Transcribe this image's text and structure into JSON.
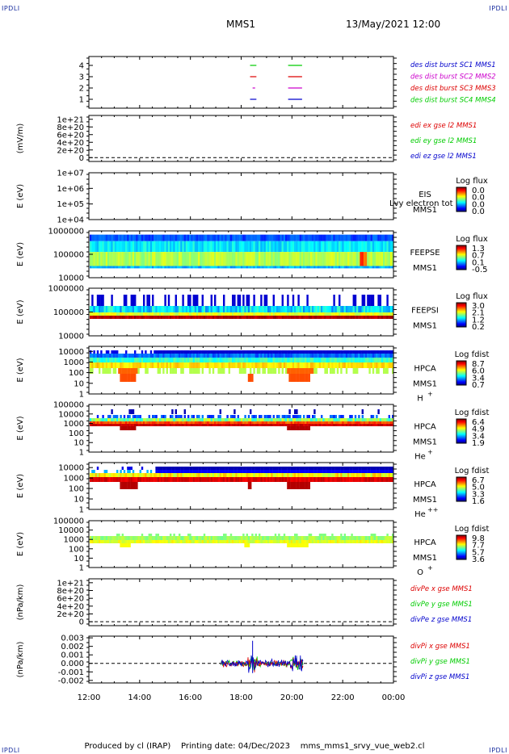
{
  "corners": {
    "tl": "IPDLI",
    "tr": "IPDLI",
    "bl": "IPDLI",
    "br": "IPDLI"
  },
  "header": {
    "mission": "MMS1",
    "datetime": "13/May/2021 12:00"
  },
  "footer": {
    "produced_by": "Produced by cl (IRAP)",
    "printing_date": "Printing date: 04/Dec/2023",
    "file": "mms_mms1_srvy_vue_web2.cl"
  },
  "colors": {
    "mms1": "#0000cc",
    "mms2": "#cc00cc",
    "mms3": "#dd0000",
    "mms4": "#00cc00",
    "x": "#dd0000",
    "y": "#00cc00",
    "z": "#0000cc"
  },
  "x_axis": {
    "ticks": [
      "12:00",
      "14:00",
      "16:00",
      "18:00",
      "20:00",
      "22:00",
      "00:00"
    ],
    "range_hours": [
      12,
      24
    ]
  },
  "chart_data": [
    {
      "type": "line",
      "panel": "des-dist-burst",
      "ylabel": "",
      "yticks": [
        "1",
        "2",
        "3",
        "4"
      ],
      "ylim": [
        0.5,
        4.5
      ],
      "legend": [
        "des dist burst SC1 MMS1",
        "des dist burst SC2 MMS2",
        "des dist burst SC3 MMS3",
        "des dist burst SC4 MMS4"
      ],
      "series": [
        {
          "name": "des dist burst SC1 MMS1",
          "color": "#0000cc",
          "level": 1,
          "intervals": [
            [
              18.35,
              18.6
            ],
            [
              19.85,
              20.4
            ]
          ]
        },
        {
          "name": "des dist burst SC2 MMS2",
          "color": "#cc00cc",
          "level": 2,
          "intervals": [
            [
              18.45,
              18.55
            ],
            [
              19.85,
              20.4
            ]
          ]
        },
        {
          "name": "des dist burst SC3 MMS3",
          "color": "#dd0000",
          "level": 3,
          "intervals": [
            [
              18.35,
              18.6
            ],
            [
              19.85,
              20.4
            ]
          ]
        },
        {
          "name": "des dist burst SC4 MMS4",
          "color": "#00cc00",
          "level": 4,
          "intervals": [
            [
              18.35,
              18.6
            ],
            [
              19.85,
              20.4
            ]
          ]
        }
      ]
    },
    {
      "type": "line",
      "panel": "edi-e-gse",
      "ylabel": "(mV/m)",
      "yticks": [
        "0",
        "2e+20",
        "4e+20",
        "6e+20",
        "8e+20",
        "1e+21"
      ],
      "ylim": [
        -1e+20,
        1.1e+21
      ],
      "dashed_zero": true,
      "legend": [
        "edi ex gse l2 MMS1",
        "edi ey gse l2 MMS1",
        "edi ez gse l2 MMS1"
      ],
      "legend_colors": [
        "#dd0000",
        "#00cc00",
        "#0000cc"
      ]
    },
    {
      "type": "heatmap",
      "panel": "eis",
      "ylabel": "E (eV)",
      "yticks": [
        "1e+04",
        "1e+05",
        "1e+06",
        "1e+07"
      ],
      "ylim": [
        10000,
        10000000
      ],
      "instrument": [
        "EIS",
        "MMS1"
      ],
      "annotation": "Lvy electron tot",
      "colorbar": {
        "title": "Log flux",
        "ticks": [
          "0.0",
          "0.0",
          "0.0",
          "0.0"
        ]
      }
    },
    {
      "type": "heatmap",
      "panel": "feepse",
      "ylabel": "E (eV)",
      "yticks": [
        "10000",
        "100000",
        "1000000"
      ],
      "ylim": [
        10000,
        1000000
      ],
      "instrument": [
        "FEEPSE",
        "MMS1"
      ],
      "colorbar": {
        "title": "Log flux",
        "ticks": [
          "1.3",
          "0.7",
          "0.1",
          "-0.5"
        ]
      }
    },
    {
      "type": "heatmap",
      "panel": "feepsi",
      "ylabel": "E (eV)",
      "yticks": [
        "10000",
        "100000",
        "1000000"
      ],
      "ylim": [
        10000,
        1000000
      ],
      "instrument": [
        "FEEPSI",
        "MMS1"
      ],
      "colorbar": {
        "title": "Log flux",
        "ticks": [
          "3.0",
          "2.1",
          "1.2",
          "0.2"
        ]
      }
    },
    {
      "type": "heatmap",
      "panel": "hpca-h",
      "ylabel": "E (eV)",
      "yticks": [
        "1",
        "10",
        "100",
        "1000",
        "10000"
      ],
      "ylim": [
        1,
        30000
      ],
      "instrument": [
        "HPCA",
        "MMS1",
        "H",
        "+"
      ],
      "colorbar": {
        "title": "Log fdist",
        "ticks": [
          "8.7",
          "6.0",
          "3.4",
          "0.7"
        ]
      }
    },
    {
      "type": "heatmap",
      "panel": "hpca-he",
      "ylabel": "E (eV)",
      "yticks": [
        "1",
        "10",
        "100",
        "1000",
        "10000",
        "100000"
      ],
      "ylim": [
        1,
        100000
      ],
      "instrument": [
        "HPCA",
        "MMS1",
        "He",
        "+"
      ],
      "colorbar": {
        "title": "Log fdist",
        "ticks": [
          "6.4",
          "4.9",
          "3.4",
          "1.9"
        ]
      }
    },
    {
      "type": "heatmap",
      "panel": "hpca-hepp",
      "ylabel": "E (eV)",
      "yticks": [
        "1",
        "10",
        "100",
        "1000",
        "10000"
      ],
      "ylim": [
        1,
        30000
      ],
      "instrument": [
        "HPCA",
        "MMS1",
        "He",
        "++"
      ],
      "colorbar": {
        "title": "Log fdist",
        "ticks": [
          "6.7",
          "5.0",
          "3.3",
          "1.6"
        ]
      }
    },
    {
      "type": "heatmap",
      "panel": "hpca-o",
      "ylabel": "E (eV)",
      "yticks": [
        "1",
        "10",
        "100",
        "1000",
        "10000",
        "100000"
      ],
      "ylim": [
        1,
        100000
      ],
      "instrument": [
        "HPCA",
        "MMS1",
        "O",
        "+"
      ],
      "colorbar": {
        "title": "Log fdist",
        "ticks": [
          "9.8",
          "7.7",
          "5.7",
          "3.6"
        ]
      }
    },
    {
      "type": "line",
      "panel": "divpe",
      "ylabel": "(nPa/km)",
      "yticks": [
        "0",
        "2e+20",
        "4e+20",
        "6e+20",
        "8e+20",
        "1e+21"
      ],
      "ylim": [
        -1e+20,
        1.1e+21
      ],
      "dashed_zero": true,
      "legend": [
        "divPe x gse MMS1",
        "divPe y gse MMS1",
        "divPe z gse MMS1"
      ],
      "legend_colors": [
        "#dd0000",
        "#00cc00",
        "#0000cc"
      ]
    },
    {
      "type": "line",
      "panel": "divpi",
      "ylabel": "(nPa/km)",
      "yticks": [
        "-0.002",
        "-0.001",
        "0.000",
        "0.001",
        "0.002",
        "0.003"
      ],
      "ylim": [
        -0.0023,
        0.0032
      ],
      "dashed_zero": true,
      "legend": [
        "divPi x gse MMS1",
        "divPi y gse MMS1",
        "divPi z gse MMS1"
      ],
      "legend_colors": [
        "#dd0000",
        "#00cc00",
        "#0000cc"
      ],
      "data_interval_hours": [
        17.2,
        20.45
      ]
    }
  ]
}
